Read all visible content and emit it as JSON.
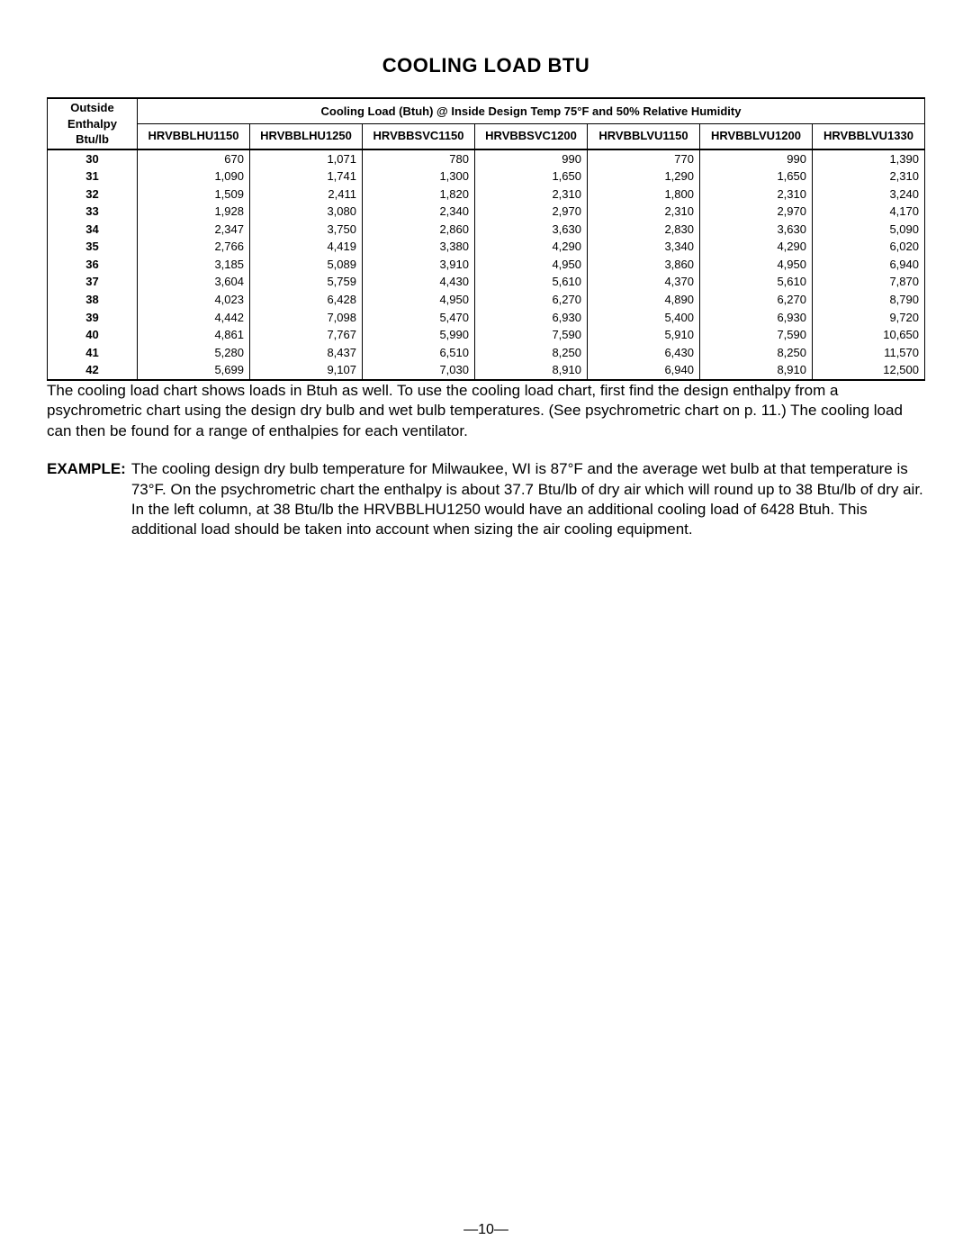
{
  "title": "COOLING LOAD BTU",
  "table": {
    "row_label_header": "Outside Enthalpy Btu/lb",
    "span_header": "Cooling Load (Btuh) @ Inside Design Temp 75°F and 50% Relative Humidity",
    "model_headers": [
      "HRVBBLHU1150",
      "HRVBBLHU1250",
      "HRVBBSVC1150",
      "HRVBBSVC1200",
      "HRVBBLVU1150",
      "HRVBBLVU1200",
      "HRVBBLVU1330"
    ],
    "rows": [
      {
        "enthalpy": "30",
        "values": [
          "670",
          "1,071",
          "780",
          "990",
          "770",
          "990",
          "1,390"
        ]
      },
      {
        "enthalpy": "31",
        "values": [
          "1,090",
          "1,741",
          "1,300",
          "1,650",
          "1,290",
          "1,650",
          "2,310"
        ]
      },
      {
        "enthalpy": "32",
        "values": [
          "1,509",
          "2,411",
          "1,820",
          "2,310",
          "1,800",
          "2,310",
          "3,240"
        ]
      },
      {
        "enthalpy": "33",
        "values": [
          "1,928",
          "3,080",
          "2,340",
          "2,970",
          "2,310",
          "2,970",
          "4,170"
        ]
      },
      {
        "enthalpy": "34",
        "values": [
          "2,347",
          "3,750",
          "2,860",
          "3,630",
          "2,830",
          "3,630",
          "5,090"
        ]
      },
      {
        "enthalpy": "35",
        "values": [
          "2,766",
          "4,419",
          "3,380",
          "4,290",
          "3,340",
          "4,290",
          "6,020"
        ]
      },
      {
        "enthalpy": "36",
        "values": [
          "3,185",
          "5,089",
          "3,910",
          "4,950",
          "3,860",
          "4,950",
          "6,940"
        ]
      },
      {
        "enthalpy": "37",
        "values": [
          "3,604",
          "5,759",
          "4,430",
          "5,610",
          "4,370",
          "5,610",
          "7,870"
        ]
      },
      {
        "enthalpy": "38",
        "values": [
          "4,023",
          "6,428",
          "4,950",
          "6,270",
          "4,890",
          "6,270",
          "8,790"
        ]
      },
      {
        "enthalpy": "39",
        "values": [
          "4,442",
          "7,098",
          "5,470",
          "6,930",
          "5,400",
          "6,930",
          "9,720"
        ]
      },
      {
        "enthalpy": "40",
        "values": [
          "4,861",
          "7,767",
          "5,990",
          "7,590",
          "5,910",
          "7,590",
          "10,650"
        ]
      },
      {
        "enthalpy": "41",
        "values": [
          "5,280",
          "8,437",
          "6,510",
          "8,250",
          "6,430",
          "8,250",
          "11,570"
        ]
      },
      {
        "enthalpy": "42",
        "values": [
          "5,699",
          "9,107",
          "7,030",
          "8,910",
          "6,940",
          "8,910",
          "12,500"
        ]
      }
    ]
  },
  "paragraph": "The cooling load chart shows loads in Btuh as well. To use the cooling load chart, first find the design enthalpy from a psychrometric chart using the design dry bulb and wet bulb temperatures. (See psychrometric chart on p. 11.) The cooling load can then be found for a range of enthalpies for each ventilator.",
  "example": {
    "label": "EXAMPLE:",
    "body": "The cooling design dry bulb temperature for Milwaukee, WI is 87°F and the average wet bulb at that temperature is 73°F. On the psychrometric chart the enthalpy is about 37.7 Btu/lb of dry air which will round up to 38 Btu/lb of dry air. In the left column, at 38 Btu/lb the HRVBBLHU1250 would have an additional cooling load of 6428 Btuh. This additional load should be taken into account when sizing the air cooling equipment."
  },
  "page_number": "—10—"
}
